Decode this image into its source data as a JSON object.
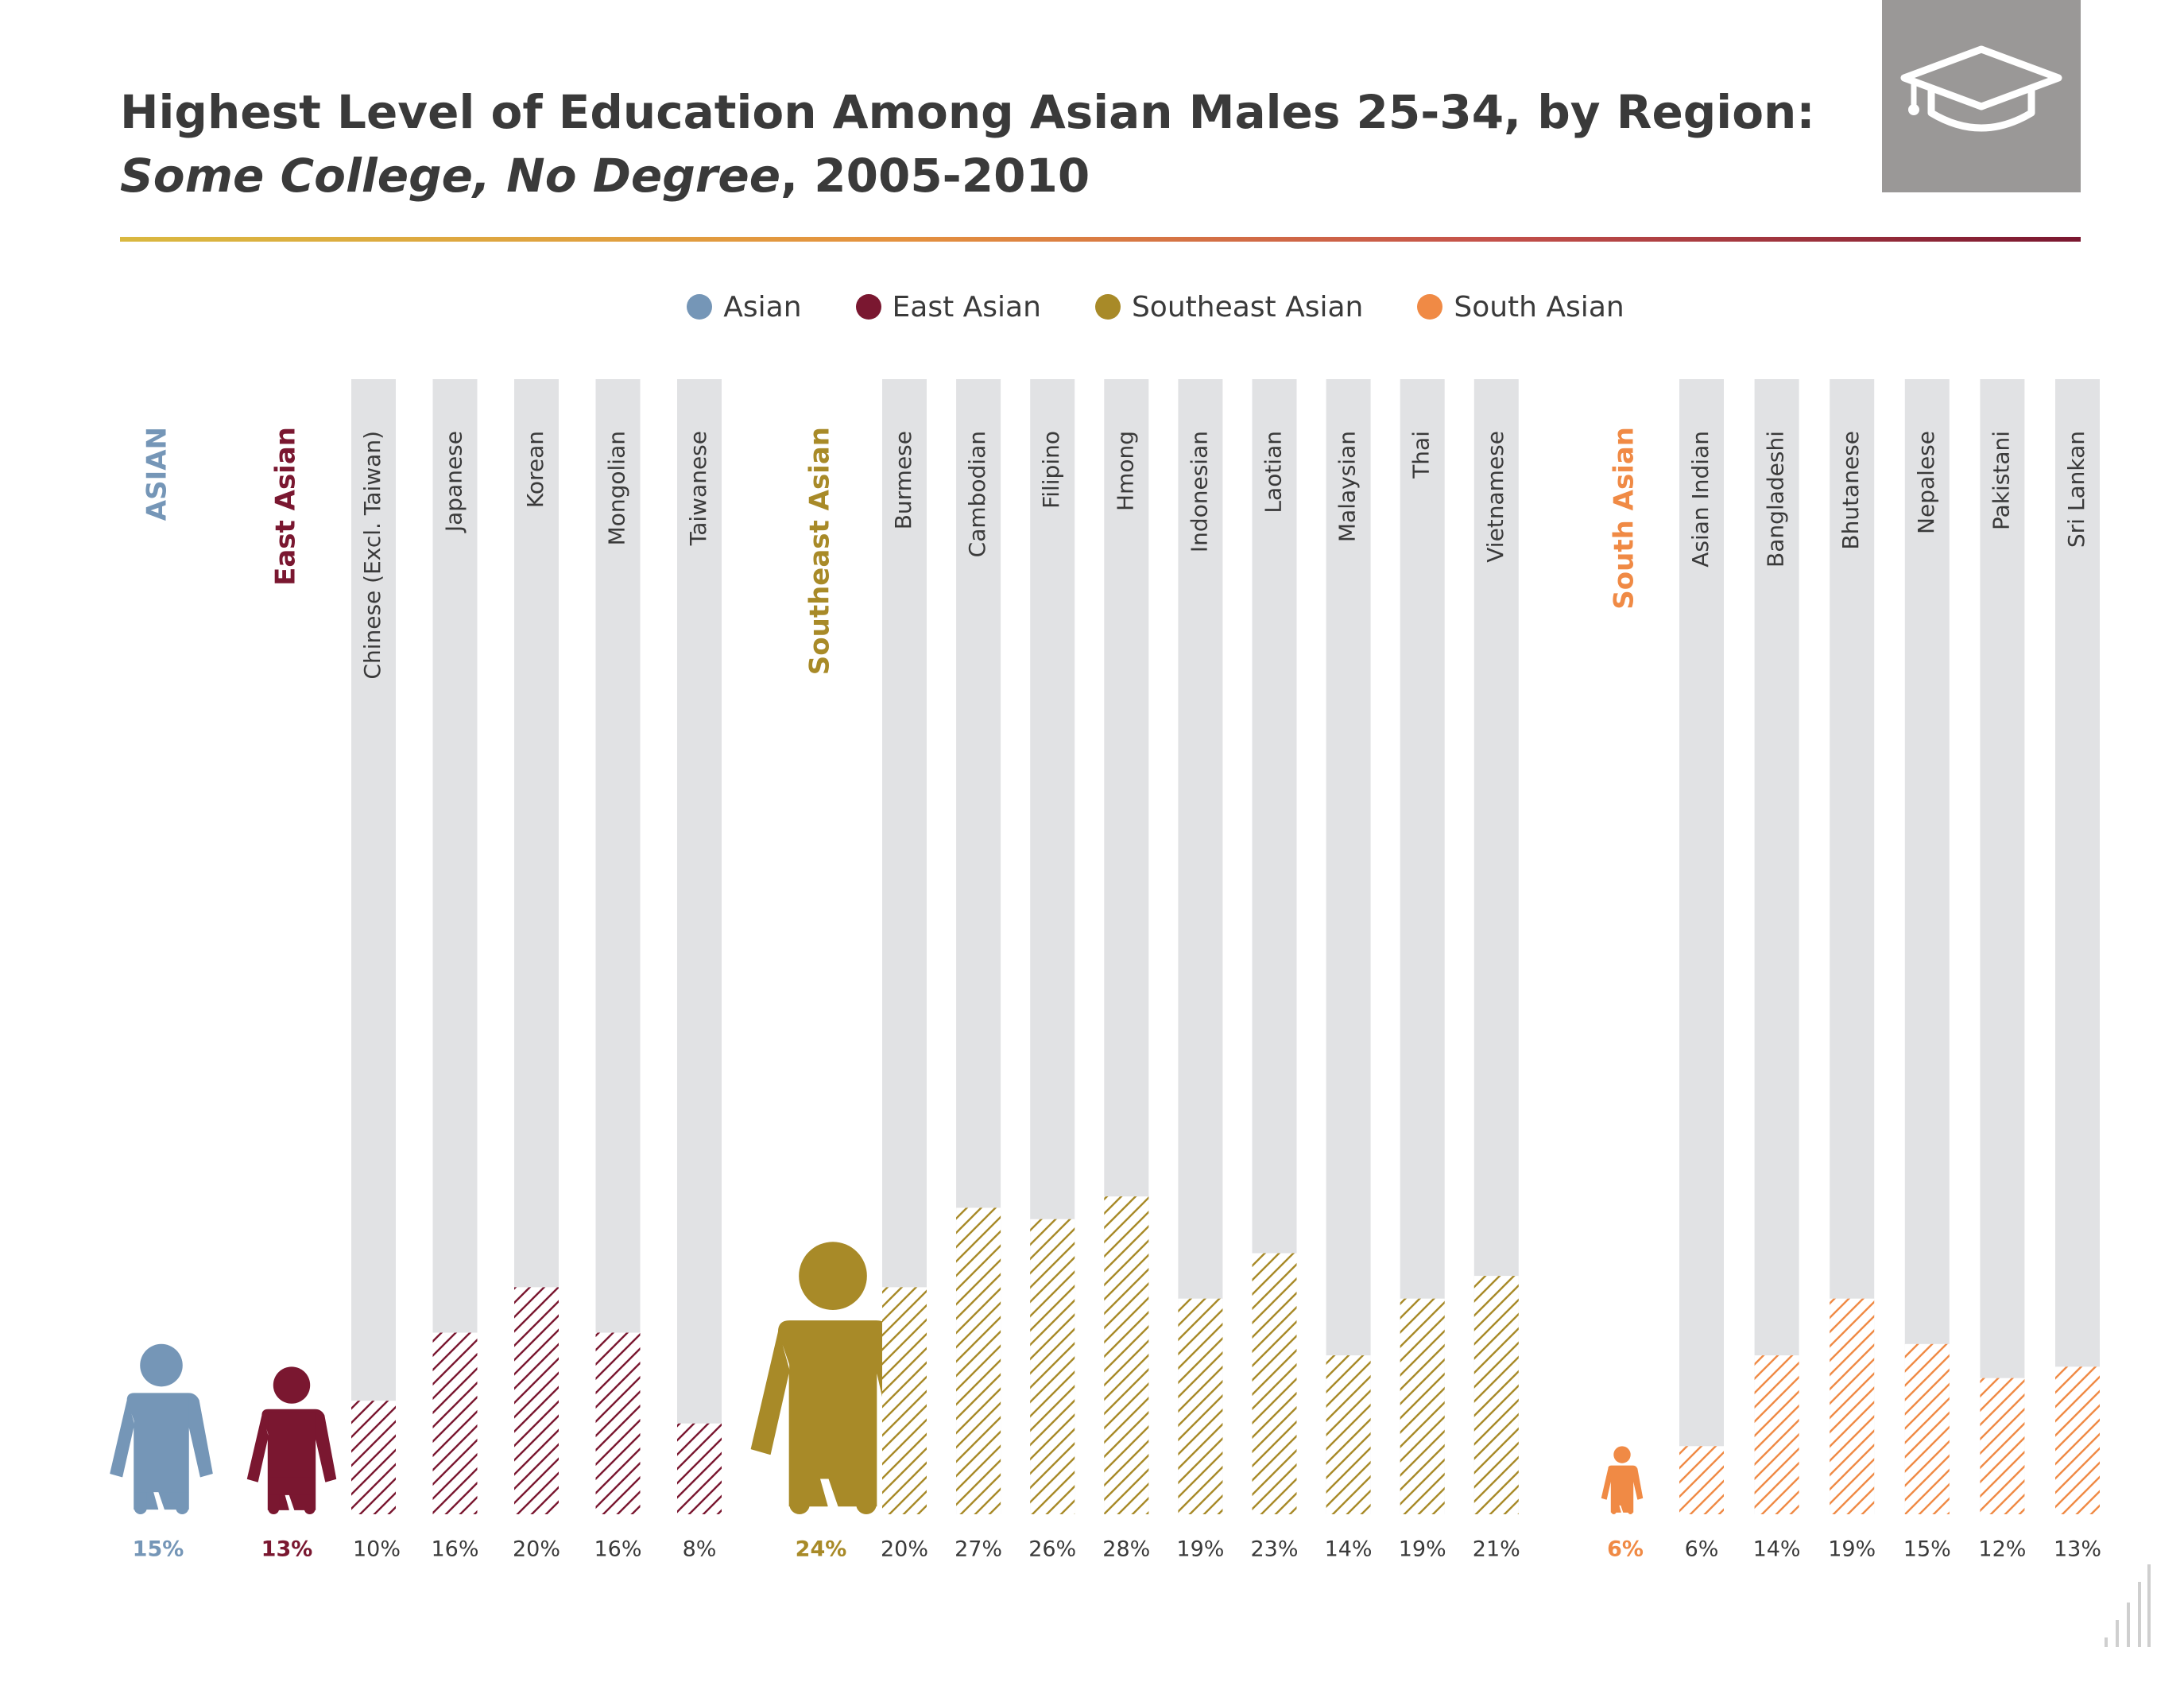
{
  "title": {
    "line1": "Highest Level of Education Among Asian Males 25-34, by Region:",
    "line2_italic": "Some College, No Degree",
    "line2_rest": ", 2005-2010"
  },
  "icons": {
    "cap": "graduation-cap-icon",
    "person": "person-icon",
    "corner": "signal-bars-icon"
  },
  "colors": {
    "asian": "#7596b7",
    "east_asian": "#7a1730",
    "southeast_asian": "#a88a28",
    "south_asian": "#f08a45",
    "bar_background": "#e1e2e4"
  },
  "legend": [
    {
      "label": "Asian",
      "color": "#7596b7"
    },
    {
      "label": "East Asian",
      "color": "#7a1730"
    },
    {
      "label": "Southeast Asian",
      "color": "#a88a28"
    },
    {
      "label": "South Asian",
      "color": "#f08a45"
    }
  ],
  "chart_data": {
    "type": "bar",
    "title": "Highest Level of Education Among Asian Males 25-34, by Region: Some College, No Degree, 2005-2010",
    "ylim": [
      0,
      100
    ],
    "value_unit": "%",
    "summary_figures": [
      {
        "label": "ASIAN",
        "value": 15,
        "color": "#7596b7"
      },
      {
        "label": "East Asian",
        "value": 13,
        "color": "#7a1730"
      },
      {
        "label": "Southeast Asian",
        "value": 24,
        "color": "#a88a28"
      },
      {
        "label": "South Asian",
        "value": 6,
        "color": "#f08a45"
      }
    ],
    "groups": [
      {
        "name": "East Asian",
        "color": "#7a1730",
        "categories": [
          "Chinese (Excl. Taiwan)",
          "Japanese",
          "Korean",
          "Mongolian",
          "Taiwanese"
        ],
        "values": [
          10,
          16,
          20,
          16,
          8
        ]
      },
      {
        "name": "Southeast Asian",
        "color": "#a88a28",
        "categories": [
          "Burmese",
          "Cambodian",
          "Filipino",
          "Hmong",
          "Indonesian",
          "Laotian",
          "Malaysian",
          "Thai",
          "Vietnamese"
        ],
        "values": [
          20,
          27,
          26,
          28,
          19,
          23,
          14,
          19,
          21
        ]
      },
      {
        "name": "South Asian",
        "color": "#f08a45",
        "categories": [
          "Asian Indian",
          "Bangladeshi",
          "Bhutanese",
          "Nepalese",
          "Pakistani",
          "Sri Lankan"
        ],
        "values": [
          6,
          14,
          19,
          15,
          12,
          13
        ]
      }
    ]
  }
}
